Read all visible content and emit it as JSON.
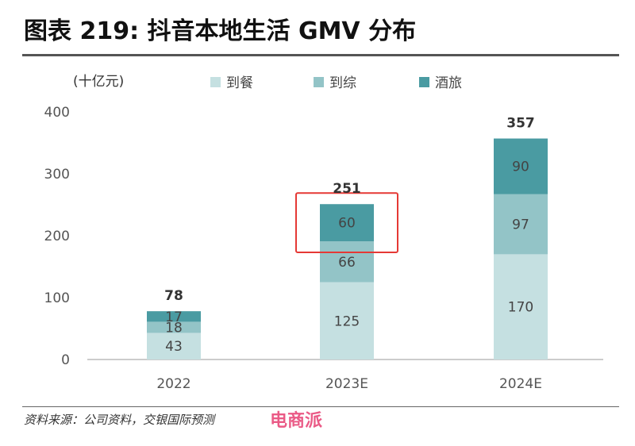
{
  "title": "图表 219: 抖音本地生活 GMV 分布",
  "source": "资料来源：公司资料，交银国际预测",
  "watermark": "电商派",
  "chart_data": {
    "type": "bar",
    "stacked": true,
    "unit_label": "(十亿元)",
    "categories": [
      "2022",
      "2023E",
      "2024E"
    ],
    "series": [
      {
        "name": "到餐",
        "values": [
          43,
          125,
          170
        ],
        "color": "#c5e0e1"
      },
      {
        "name": "到综",
        "values": [
          18,
          66,
          97
        ],
        "color": "#93c4c7"
      },
      {
        "name": "酒旅",
        "values": [
          17,
          60,
          90
        ],
        "color": "#4a9ba2"
      }
    ],
    "totals": [
      78,
      251,
      357
    ],
    "yticks": [
      0,
      100,
      200,
      300,
      400
    ],
    "ylim": [
      0,
      400
    ],
    "legend_position": "top",
    "highlight": {
      "category": "2023E",
      "series": "酒旅",
      "color": "#e53935"
    }
  }
}
